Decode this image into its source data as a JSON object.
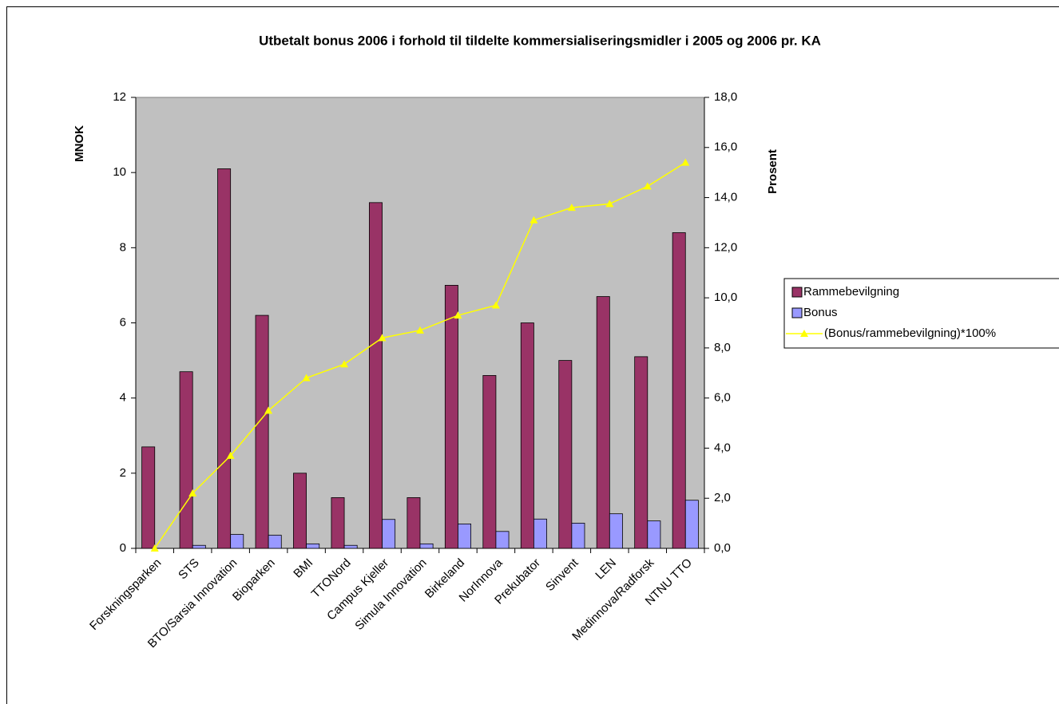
{
  "chart_data": {
    "type": "bar",
    "title": "Utbetalt bonus 2006 i forhold til tildelte kommersialiseringsmidler i 2005 og 2006 pr. KA",
    "y_label": "MNOK",
    "y2_label": "Prosent",
    "categories": [
      "Forskningsparken",
      "STS",
      "BTO/Sarsia Innovation",
      "Bioparken",
      "BMI",
      "TTONord",
      "Campus Kjeller",
      "Simula Innovation",
      "Birkeland",
      "NorInnova",
      "Prekubator",
      "Sinvent",
      "LEN",
      "Medinnova/Radforsk",
      "NTNU TTO"
    ],
    "series": [
      {
        "name": "Rammebevilgning",
        "type": "bar",
        "color": "#993366",
        "values": [
          2.7,
          4.7,
          10.1,
          6.2,
          2.0,
          1.35,
          9.2,
          1.35,
          7.0,
          4.6,
          6.0,
          5.0,
          6.7,
          5.1,
          8.4
        ]
      },
      {
        "name": "Bonus",
        "type": "bar",
        "color": "#9999ff",
        "values": [
          0,
          0.08,
          0.37,
          0.35,
          0.12,
          0.08,
          0.77,
          0.12,
          0.65,
          0.45,
          0.78,
          0.67,
          0.92,
          0.73,
          1.28
        ]
      },
      {
        "name": "(Bonus/rammebevilgning)*100%",
        "type": "line",
        "axis": "y2",
        "color": "#ffff00",
        "values": [
          0,
          2.2,
          3.7,
          5.5,
          6.8,
          7.35,
          8.4,
          8.7,
          9.3,
          9.7,
          13.1,
          13.6,
          13.75,
          14.45,
          15.4
        ]
      }
    ],
    "ylim": [
      0,
      12
    ],
    "yticks": [
      0,
      2,
      4,
      6,
      8,
      10,
      12
    ],
    "y2lim": [
      0,
      18
    ],
    "y2ticks": [
      {
        "value": 0,
        "label": "0,0"
      },
      {
        "value": 2,
        "label": "2,0"
      },
      {
        "value": 4,
        "label": "4,0"
      },
      {
        "value": 6,
        "label": "6,0"
      },
      {
        "value": 8,
        "label": "8,0"
      },
      {
        "value": 10,
        "label": "10,0"
      },
      {
        "value": 12,
        "label": "12,0"
      },
      {
        "value": 14,
        "label": "14,0"
      },
      {
        "value": 16,
        "label": "16,0"
      },
      {
        "value": 18,
        "label": "18,0"
      }
    ],
    "plot_background": "#c0c0c0",
    "legend": "right"
  }
}
